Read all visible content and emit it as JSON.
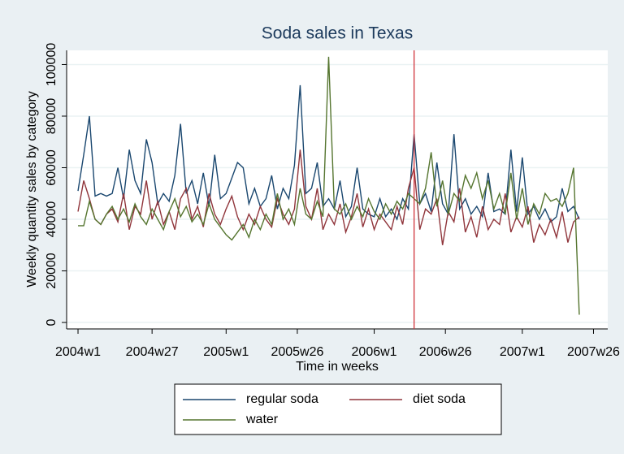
{
  "chart_data": {
    "type": "line",
    "title": "Soda sales in Texas",
    "x_label": "Time in weeks",
    "y_label": "Weekly quantity sales by category",
    "x": [
      2288,
      2290,
      2292,
      2294,
      2296,
      2298,
      2300,
      2302,
      2304,
      2306,
      2308,
      2310,
      2312,
      2314,
      2316,
      2318,
      2320,
      2322,
      2324,
      2326,
      2328,
      2330,
      2332,
      2334,
      2336,
      2338,
      2340,
      2342,
      2344,
      2346,
      2348,
      2350,
      2352,
      2354,
      2356,
      2358,
      2360,
      2362,
      2364,
      2366,
      2368,
      2370,
      2372,
      2374,
      2376,
      2378,
      2380,
      2382,
      2384,
      2386,
      2388,
      2390,
      2392,
      2394,
      2396,
      2398,
      2400,
      2402,
      2404,
      2406,
      2408,
      2410,
      2412,
      2414,
      2416,
      2418,
      2420,
      2422,
      2424,
      2426,
      2428,
      2430,
      2432,
      2434,
      2436,
      2438,
      2440,
      2442,
      2444,
      2446,
      2448,
      2450,
      2452,
      2454,
      2456,
      2458,
      2460,
      2462,
      2464
    ],
    "series": [
      {
        "name": "regular soda",
        "color": "#1a476f",
        "values": [
          51000,
          65000,
          80000,
          49000,
          50000,
          49000,
          50000,
          60000,
          48000,
          67000,
          55000,
          50000,
          71000,
          62000,
          46000,
          50000,
          47000,
          57000,
          77000,
          50000,
          55000,
          46000,
          58000,
          45000,
          65000,
          48000,
          50000,
          56000,
          62000,
          60000,
          46000,
          52000,
          45000,
          48000,
          57000,
          44000,
          52000,
          48000,
          61000,
          92000,
          50000,
          52000,
          62000,
          45000,
          48000,
          44000,
          55000,
          41000,
          45000,
          60000,
          44000,
          42000,
          41000,
          48000,
          41000,
          44000,
          40000,
          48000,
          44000,
          73000,
          46000,
          50000,
          43000,
          62000,
          46000,
          42000,
          73000,
          44000,
          48000,
          42000,
          45000,
          41000,
          58000,
          43000,
          44000,
          42000,
          67000,
          43000,
          64000,
          42000,
          45000,
          40000,
          44000,
          39000,
          41000,
          52000,
          43000,
          45000,
          40000
        ]
      },
      {
        "name": "diet soda",
        "color": "#90353b",
        "values": [
          43000,
          55000,
          48000,
          40000,
          38000,
          42000,
          44000,
          39000,
          50000,
          36000,
          45000,
          42000,
          55000,
          40000,
          47000,
          38000,
          43000,
          36000,
          48000,
          52000,
          40000,
          45000,
          37000,
          50000,
          42000,
          38000,
          44000,
          49000,
          41000,
          36000,
          42000,
          38000,
          45000,
          40000,
          37000,
          48000,
          42000,
          38000,
          44000,
          67000,
          45000,
          40000,
          52000,
          36000,
          42000,
          38000,
          46000,
          35000,
          41000,
          50000,
          37000,
          44000,
          36000,
          42000,
          39000,
          36000,
          45000,
          38000,
          52000,
          60000,
          36000,
          44000,
          42000,
          48000,
          30000,
          43000,
          39000,
          52000,
          35000,
          41000,
          33000,
          45000,
          36000,
          40000,
          38000,
          50000,
          35000,
          41000,
          37000,
          45000,
          31000,
          38000,
          34000,
          40000,
          33000,
          43000,
          31000,
          39000,
          41000
        ]
      },
      {
        "name": "water",
        "color": "#55752f",
        "values": [
          37500,
          37500,
          47000,
          40000,
          38000,
          42000,
          45000,
          40000,
          44000,
          39000,
          46000,
          41000,
          38000,
          44000,
          40000,
          36000,
          43000,
          48000,
          41000,
          45000,
          39000,
          42000,
          38000,
          46000,
          40000,
          37000,
          34000,
          32000,
          35000,
          38000,
          33000,
          40000,
          36000,
          42000,
          38000,
          50000,
          40000,
          44000,
          38000,
          52000,
          42000,
          40000,
          47000,
          41000,
          103000,
          44000,
          42000,
          46000,
          40000,
          45000,
          41000,
          48000,
          43000,
          40000,
          46000,
          42000,
          47000,
          44000,
          50000,
          48000,
          46000,
          52000,
          66000,
          45000,
          55000,
          42000,
          50000,
          47000,
          57000,
          52000,
          58000,
          48000,
          55000,
          44000,
          50000,
          42000,
          58000,
          40000,
          52000,
          38000,
          46000,
          42000,
          50000,
          47000,
          48000,
          45000,
          50000,
          60000,
          3000
        ]
      }
    ],
    "vline": {
      "value": 2406,
      "color": "#d0343c"
    },
    "xlim": [
      2284,
      2474
    ],
    "ylim": [
      -2500,
      105500
    ],
    "xticks": [
      {
        "value": 2288,
        "label": "2004w1"
      },
      {
        "value": 2314,
        "label": "2004w27"
      },
      {
        "value": 2340,
        "label": "2005w1"
      },
      {
        "value": 2365,
        "label": "2005w26"
      },
      {
        "value": 2392,
        "label": "2006w1"
      },
      {
        "value": 2417,
        "label": "2006w26"
      },
      {
        "value": 2444,
        "label": "2007w1"
      },
      {
        "value": 2469,
        "label": "2007w26"
      }
    ],
    "yticks": [
      0,
      20000,
      40000,
      60000,
      80000,
      100000
    ],
    "grid": true,
    "legend": "bottom"
  }
}
